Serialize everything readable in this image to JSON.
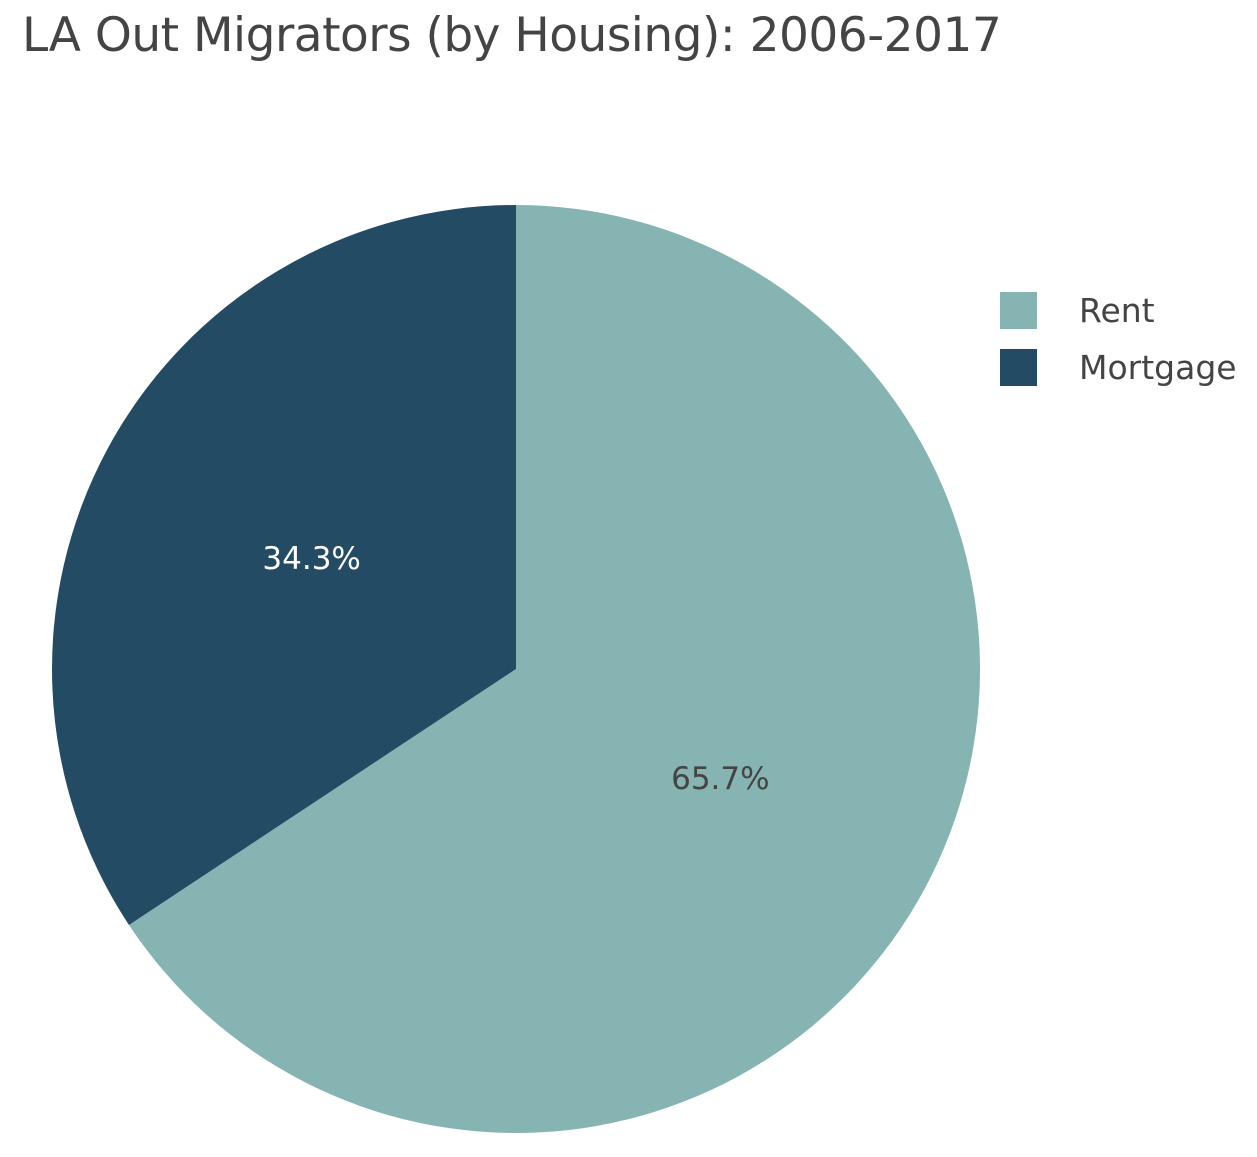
{
  "chart_data": {
    "type": "pie",
    "title": "LA Out Migrators (by Housing): 2006-2017",
    "legend_position": "right",
    "series": [
      {
        "name": "Rent",
        "value": 65.7,
        "label": "65.7%",
        "color": "#85b4b2",
        "label_color": "#444444"
      },
      {
        "name": "Mortgage",
        "value": 34.3,
        "label": "34.3%",
        "color": "#234b63",
        "label_color": "#ffffff"
      }
    ]
  }
}
